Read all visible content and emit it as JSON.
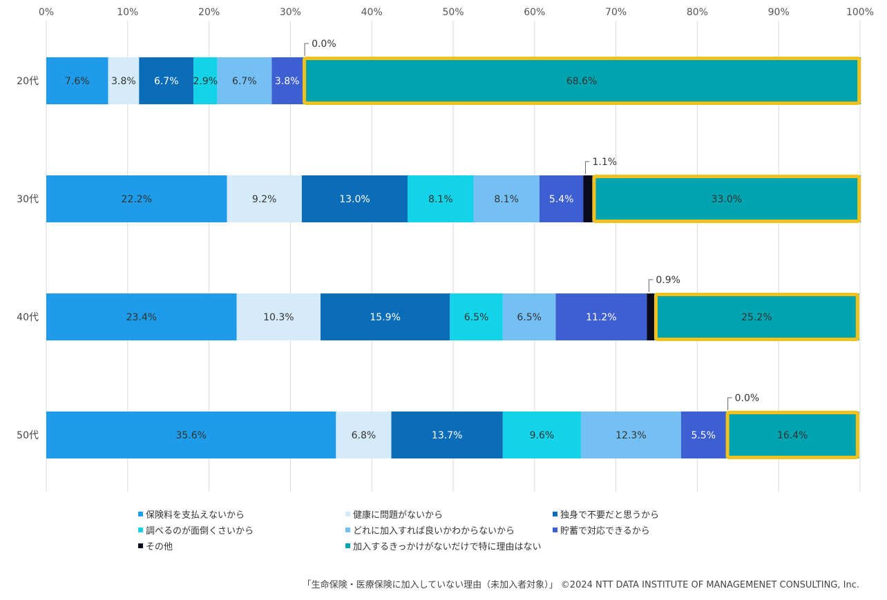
{
  "chart_data": {
    "type": "bar",
    "orientation": "horizontal",
    "stacked": true,
    "xlim": [
      0,
      100
    ],
    "x_tick_labels": [
      "0%",
      "10%",
      "20%",
      "30%",
      "40%",
      "50%",
      "60%",
      "70%",
      "80%",
      "90%",
      "100%"
    ],
    "categories": [
      "20代",
      "30代",
      "40代",
      "50代"
    ],
    "series": [
      {
        "name": "保険料を支払えないから",
        "color": "#1e9be9",
        "label_color": "#333333",
        "values": [
          7.6,
          22.2,
          23.4,
          35.6
        ],
        "labels": [
          "7.6%",
          "22.2%",
          "23.4%",
          "35.6%"
        ]
      },
      {
        "name": "健康に問題がないから",
        "color": "#d6ebfa",
        "label_color": "#333333",
        "values": [
          3.8,
          9.2,
          10.3,
          6.8
        ],
        "labels": [
          "3.8%",
          "9.2%",
          "10.3%",
          "6.8%"
        ]
      },
      {
        "name": "独身で不要だと思うから",
        "color": "#0b6db7",
        "label_color": "#ffffff",
        "values": [
          6.7,
          13.0,
          15.9,
          13.7
        ],
        "labels": [
          "6.7%",
          "13.0%",
          "15.9%",
          "13.7%"
        ]
      },
      {
        "name": "調べるのが面倒くさいから",
        "color": "#12d3e8",
        "label_color": "#333333",
        "values": [
          2.9,
          8.1,
          6.5,
          9.6
        ],
        "labels": [
          "2.9%",
          "8.1%",
          "6.5%",
          "9.6%"
        ]
      },
      {
        "name": "どれに加入すれば良いかわからないから",
        "color": "#74c0f4",
        "label_color": "#333333",
        "values": [
          6.7,
          8.1,
          6.5,
          12.3
        ],
        "labels": [
          "6.7%",
          "8.1%",
          "6.5%",
          "12.3%"
        ]
      },
      {
        "name": "貯蓄で対応できるから",
        "color": "#3e5fd1",
        "label_color": "#ffffff",
        "values": [
          3.8,
          5.4,
          11.2,
          5.5
        ],
        "labels": [
          "3.8%",
          "5.4%",
          "11.2%",
          "5.5%"
        ]
      },
      {
        "name": "その他",
        "color": "#0a0a1e",
        "label_color": "#333333",
        "values": [
          0.0,
          1.1,
          0.9,
          0.0
        ],
        "labels": [
          "0.0%",
          "1.1%",
          "0.9%",
          "0.0%"
        ]
      },
      {
        "name": "加入するきっかけがないだけで特に理由はない",
        "color": "#00a3b0",
        "label_color": "#333333",
        "values": [
          68.6,
          33.0,
          25.2,
          16.4
        ],
        "labels": [
          "68.6%",
          "33.0%",
          "25.2%",
          "16.4%"
        ]
      }
    ],
    "highlight_series": "加入するきっかけがないだけで特に理由はない",
    "highlight_color": "#f2c11c",
    "callout_series": "その他",
    "legend_position": "bottom",
    "grid": true
  },
  "caption": "「生命保険・医療保険に加入していない理由（未加入者対象）」 ©2024 NTT DATA INSTITUTE OF MANAGEMENET CONSULTING, Inc."
}
